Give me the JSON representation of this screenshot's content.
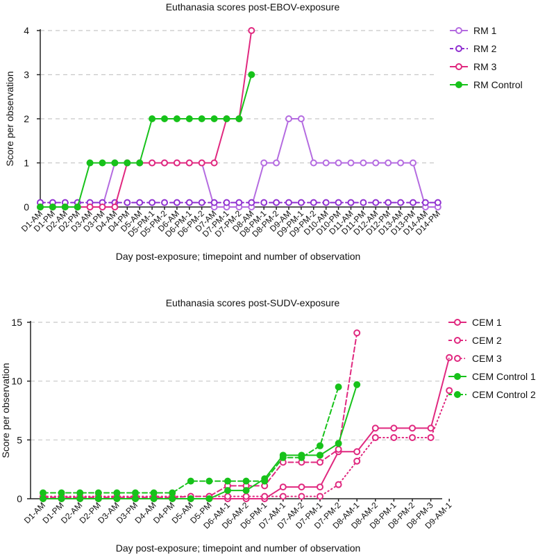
{
  "colors": {
    "rm1": "#b46be0",
    "rm2": "#8f2fd0",
    "rm3": "#e0287f",
    "control": "#17c21a",
    "cem": "#e0287f"
  },
  "chart_data": [
    {
      "type": "line",
      "title": "Euthanasia scores post-EBOV-exposure",
      "xlabel": "Day post-exposure; timepoint and number of observation",
      "ylabel": "Score per observation",
      "ylim": [
        0,
        4
      ],
      "yticks": [
        "0",
        "1",
        "2",
        "3",
        "4"
      ],
      "categories": [
        "D1-AM",
        "D1-PM",
        "D2-AM",
        "D2-PM",
        "D3-AM",
        "D3-PM",
        "D4-AM",
        "D4-PM",
        "D5-AM",
        "D5-PM-1",
        "D5-PM-2",
        "D6-AM",
        "D6-PM-1",
        "D6-PM-2",
        "D7-AM",
        "D7-PM-1",
        "D7-PM-2",
        "D8-AM",
        "D8-PM-1",
        "D8-PM-2",
        "D9-AM",
        "D9-PM-1",
        "D9-PM-2",
        "D10-AM",
        "D10-PM",
        "D11-AM",
        "D11-PM",
        "D12-AM",
        "D12-PM",
        "D13-AM",
        "D13-PM",
        "D14-AM",
        "D14-PM"
      ],
      "legend_position": "right",
      "series": [
        {
          "name": "RM 1",
          "dash": "solid",
          "filled": false,
          "color_key": "rm1",
          "values": [
            0,
            0,
            0,
            0,
            0,
            0,
            1,
            1,
            1,
            1,
            1,
            1,
            1,
            1,
            0,
            0,
            0,
            0,
            1,
            1,
            2,
            2,
            1,
            1,
            1,
            1,
            1,
            1,
            1,
            1,
            1,
            0,
            0
          ]
        },
        {
          "name": "RM 2",
          "dash": "dashed",
          "filled": false,
          "color_key": "rm2",
          "values": [
            0.1,
            0.1,
            0.1,
            0.1,
            0.1,
            0.1,
            0.1,
            0.1,
            0.1,
            0.1,
            0.1,
            0.1,
            0.1,
            0.1,
            0.1,
            0.1,
            0.1,
            0.1,
            0.1,
            0.1,
            0.1,
            0.1,
            0.1,
            0.1,
            0.1,
            0.1,
            0.1,
            0.1,
            0.1,
            0.1,
            0.1,
            0.1,
            0.1
          ]
        },
        {
          "name": "RM 3",
          "dash": "solid",
          "filled": false,
          "color_key": "rm3",
          "values": [
            0,
            0,
            0,
            0,
            0,
            0,
            0,
            1,
            1,
            1,
            1,
            1,
            1,
            1,
            1,
            2,
            2,
            4,
            null,
            null,
            null,
            null,
            null,
            null,
            null,
            null,
            null,
            null,
            null,
            null,
            null,
            null,
            null
          ]
        },
        {
          "name": "RM Control",
          "dash": "solid",
          "filled": true,
          "color_key": "control",
          "values": [
            0,
            0,
            0,
            0,
            1,
            1,
            1,
            1,
            1,
            2,
            2,
            2,
            2,
            2,
            2,
            2,
            2,
            3,
            null,
            null,
            null,
            null,
            null,
            null,
            null,
            null,
            null,
            null,
            null,
            null,
            null,
            null,
            null
          ]
        }
      ]
    },
    {
      "type": "line",
      "title": "Euthanasia scores post-SUDV-exposure",
      "xlabel": "Day post-exposure; timepoint and number of observation",
      "ylabel": "Score per observation",
      "ylim": [
        0,
        15
      ],
      "yticks": [
        "0",
        "5",
        "10",
        "15"
      ],
      "categories": [
        "D1-AM",
        "D1-PM",
        "D2-AM",
        "D2-PM",
        "D3-AM",
        "D3-PM",
        "D4-AM",
        "D4-PM",
        "D5-AM",
        "D5-PM",
        "D6-AM-1",
        "D6-AM-2",
        "D6-PM-1",
        "D7-AM-1",
        "D7-AM-2",
        "D7-PM-1",
        "D7-PM-2",
        "D8-AM-1",
        "D8-AM-2",
        "D8-PM-1",
        "D8-PM-2",
        "D8-PM-3",
        "D9-AM-1"
      ],
      "legend_position": "right",
      "series": [
        {
          "name": "CEM 1",
          "dash": "solid",
          "filled": false,
          "color_key": "cem",
          "values": [
            0,
            0,
            0,
            0,
            0,
            0,
            0,
            0,
            0,
            0,
            0,
            0,
            0,
            1,
            1,
            1,
            4,
            4,
            6,
            6,
            6,
            6,
            12
          ]
        },
        {
          "name": "CEM 2",
          "dash": "dashed",
          "filled": false,
          "color_key": "cem",
          "values": [
            0.1,
            0.1,
            0.1,
            0.1,
            0.1,
            0.1,
            0.1,
            0.1,
            0.2,
            0.2,
            1.1,
            1.1,
            1.1,
            3.1,
            3.1,
            3.1,
            4.2,
            14.1,
            null,
            null,
            null,
            null,
            null
          ]
        },
        {
          "name": "CEM 3",
          "dash": "dotted",
          "filled": false,
          "color_key": "cem",
          "values": [
            0.2,
            0.2,
            0.2,
            0.2,
            0.2,
            0.2,
            0.2,
            0.2,
            0.2,
            0.2,
            0.2,
            0.2,
            0.2,
            0.2,
            0.2,
            0.2,
            1.2,
            3.2,
            5.2,
            5.2,
            5.2,
            5.2,
            9.2
          ]
        },
        {
          "name": "CEM Control 1",
          "dash": "solid",
          "filled": true,
          "color_key": "control",
          "values": [
            0,
            0,
            0,
            0,
            0,
            0,
            0,
            0,
            0,
            0,
            0.7,
            0.7,
            1.7,
            3.7,
            3.7,
            3.7,
            4.7,
            9.7,
            null,
            null,
            null,
            null,
            null
          ]
        },
        {
          "name": "CEM Control 2",
          "dash": "dashed",
          "filled": true,
          "color_key": "control",
          "values": [
            0.5,
            0.5,
            0.5,
            0.5,
            0.5,
            0.5,
            0.5,
            0.5,
            1.5,
            1.5,
            1.5,
            1.5,
            1.5,
            3.5,
            3.5,
            4.5,
            9.5,
            null,
            null,
            null,
            null,
            null,
            null
          ]
        }
      ]
    }
  ]
}
